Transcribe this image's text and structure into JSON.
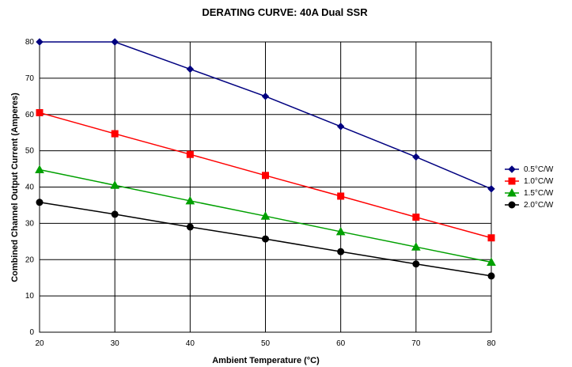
{
  "chart_data": {
    "type": "line",
    "title": "DERATING CURVE: 40A Dual SSR",
    "xlabel": "Ambient Temperature (°C)",
    "ylabel": "Combined Channel Output Current (Amperes)",
    "x": [
      20,
      30,
      40,
      50,
      60,
      70,
      80
    ],
    "xlim": [
      20,
      80
    ],
    "ylim": [
      0,
      80
    ],
    "xticks": [
      "20",
      "30",
      "40",
      "50",
      "60",
      "70",
      "80"
    ],
    "yticks": [
      "0",
      "10",
      "20",
      "30",
      "40",
      "50",
      "60",
      "70",
      "80"
    ],
    "grid": true,
    "legend_position": "right",
    "series": [
      {
        "name": "0.5°C/W",
        "color": "#000080",
        "marker": "diamond",
        "values": [
          80,
          80,
          72.5,
          65,
          56.7,
          48.3,
          39.5
        ]
      },
      {
        "name": "1.0°C/W",
        "color": "#ff0000",
        "marker": "square",
        "values": [
          60.5,
          54.7,
          49,
          43.2,
          37.5,
          31.7,
          26
        ]
      },
      {
        "name": "1.5°C/W",
        "color": "#00a000",
        "marker": "triangle",
        "values": [
          44.8,
          40.5,
          36.2,
          32,
          27.7,
          23.5,
          19.3
        ]
      },
      {
        "name": "2.0°C/W",
        "color": "#000000",
        "marker": "circle",
        "values": [
          35.8,
          32.5,
          29,
          25.7,
          22.2,
          18.8,
          15.5
        ]
      }
    ]
  }
}
